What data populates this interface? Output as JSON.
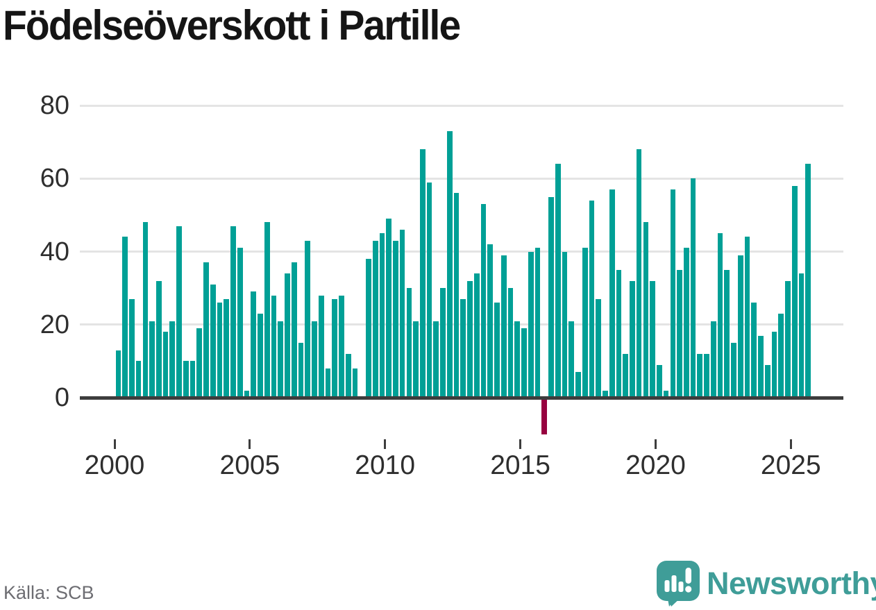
{
  "title": "Födelseöverskott i Partille",
  "footer": {
    "source": "Källa: SCB",
    "brand": "Newsworthy"
  },
  "colors": {
    "bar": "#00a096",
    "negative_bar": "#970240",
    "grid": "#e4e4e4",
    "axis": "#3d3d3d",
    "axis_text": "#2e2e2e",
    "muted_text": "#6d6d72",
    "brand": "#3f9d98",
    "title_text": "#151515"
  },
  "chart_data": {
    "type": "bar",
    "title": "Födelseöverskott i Partille",
    "xlabel": "",
    "ylabel": "",
    "frequency": "quarterly",
    "start": "2000-Q1",
    "end": "2025-Q3",
    "grid": "horizontal",
    "ylim": [
      -14,
      86
    ],
    "y_ticks": [
      0,
      20,
      40,
      60,
      80
    ],
    "x_ticks": [
      2000,
      2005,
      2010,
      2015,
      2020,
      2025
    ],
    "series_by_year": [
      {
        "year": 2000,
        "values": [
          13,
          44,
          27,
          10
        ]
      },
      {
        "year": 2001,
        "values": [
          48,
          21,
          32,
          18
        ]
      },
      {
        "year": 2002,
        "values": [
          21,
          47,
          10,
          10
        ]
      },
      {
        "year": 2003,
        "values": [
          19,
          37,
          31,
          26
        ]
      },
      {
        "year": 2004,
        "values": [
          27,
          47,
          41,
          2
        ]
      },
      {
        "year": 2005,
        "values": [
          29,
          23,
          48,
          28
        ]
      },
      {
        "year": 2006,
        "values": [
          21,
          34,
          37,
          15
        ]
      },
      {
        "year": 2007,
        "values": [
          43,
          21,
          28,
          8
        ]
      },
      {
        "year": 2008,
        "values": [
          27,
          28,
          12,
          8
        ]
      },
      {
        "year": 2009,
        "values": [
          0,
          38,
          43,
          45
        ]
      },
      {
        "year": 2010,
        "values": [
          49,
          43,
          46,
          30
        ]
      },
      {
        "year": 2011,
        "values": [
          21,
          68,
          59,
          21
        ]
      },
      {
        "year": 2012,
        "values": [
          30,
          73,
          56,
          27
        ]
      },
      {
        "year": 2013,
        "values": [
          32,
          34,
          53,
          42
        ]
      },
      {
        "year": 2014,
        "values": [
          26,
          39,
          30,
          21
        ]
      },
      {
        "year": 2015,
        "values": [
          19,
          40,
          41,
          -10
        ]
      },
      {
        "year": 2016,
        "values": [
          55,
          64,
          40,
          21
        ]
      },
      {
        "year": 2017,
        "values": [
          7,
          41,
          54,
          27
        ]
      },
      {
        "year": 2018,
        "values": [
          2,
          57,
          35,
          12
        ]
      },
      {
        "year": 2019,
        "values": [
          32,
          68,
          48,
          32
        ]
      },
      {
        "year": 2020,
        "values": [
          9,
          2,
          57,
          35
        ]
      },
      {
        "year": 2021,
        "values": [
          41,
          60,
          12,
          12
        ]
      },
      {
        "year": 2022,
        "values": [
          21,
          45,
          35,
          15
        ]
      },
      {
        "year": 2023,
        "values": [
          39,
          44,
          26,
          17
        ]
      },
      {
        "year": 2024,
        "values": [
          9,
          18,
          23,
          32
        ]
      },
      {
        "year": 2025,
        "values": [
          58,
          34,
          64
        ]
      }
    ]
  }
}
